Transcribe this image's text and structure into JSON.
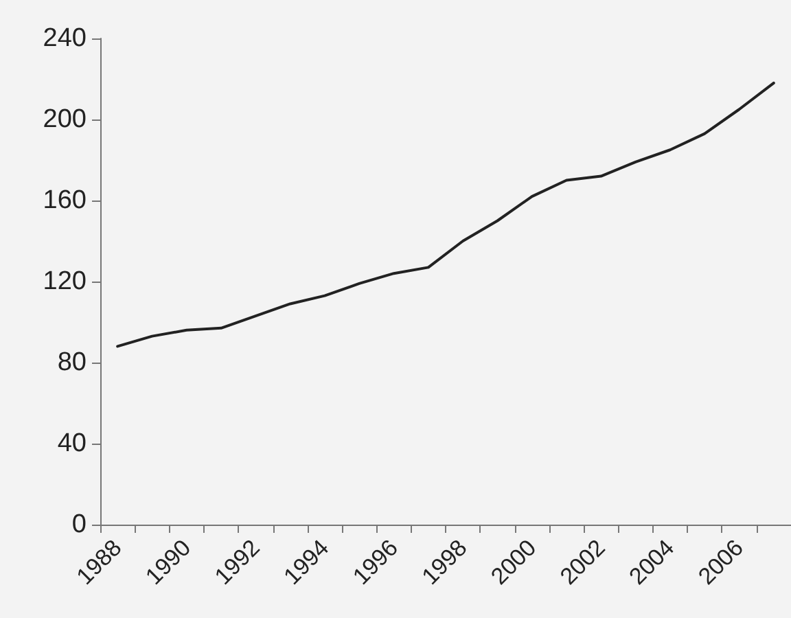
{
  "chart_data": {
    "type": "line",
    "categories": [
      "1988",
      null,
      "1990",
      null,
      "1992",
      null,
      "1994",
      null,
      "1996",
      null,
      "1998",
      null,
      "2000",
      null,
      "2002",
      null,
      "2004",
      null,
      "2006",
      null
    ],
    "series": [
      {
        "color": "#222222",
        "values": [
          88,
          93,
          96,
          97,
          103,
          109,
          113,
          119,
          124,
          127,
          140,
          150,
          162,
          170,
          172,
          179,
          185,
          193,
          205,
          218
        ]
      }
    ],
    "ylim": [
      0,
      240
    ],
    "yticks": [
      0,
      40,
      80,
      120,
      160,
      200,
      240
    ],
    "grid": false,
    "marker": "none",
    "line_style": "solid"
  }
}
